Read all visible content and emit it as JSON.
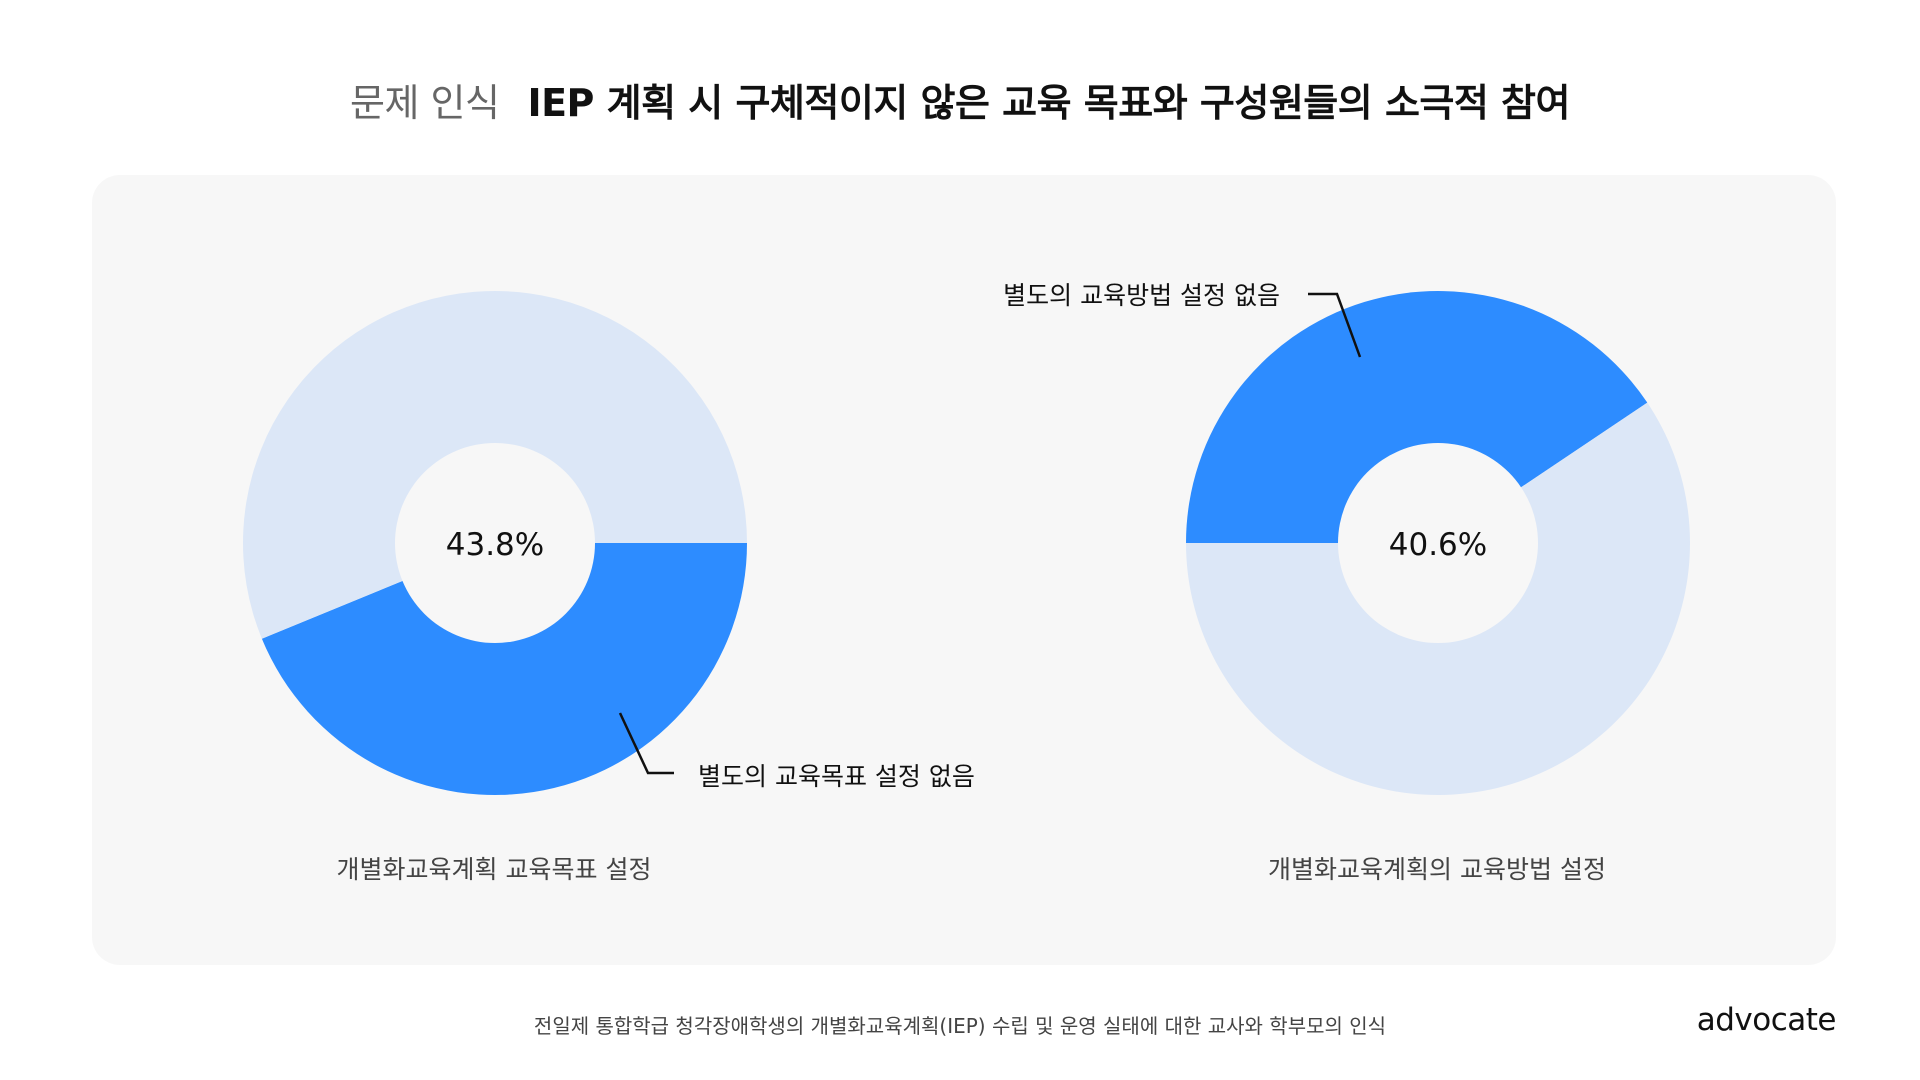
{
  "header": {
    "tag": "문제 인식",
    "title": "IEP 계획 시 구체적이지 않은 교육 목표와 구성원들의 소극적 참여"
  },
  "chart_data": [
    {
      "type": "pie",
      "style": "donut",
      "title": "개별화교육계획 교육목표 설정",
      "center_label": "43.8%",
      "slices": [
        {
          "label": "별도의 교육목표 설정 없음",
          "value": 43.8,
          "color": "#2d8cff"
        },
        {
          "label": "",
          "value": 56.2,
          "color": "#dce7f7"
        }
      ]
    },
    {
      "type": "pie",
      "style": "donut",
      "title": "개별화교육계획의 교육방법 설정",
      "center_label": "40.6%",
      "slices": [
        {
          "label": "별도의 교육방법 설정 없음",
          "value": 40.6,
          "color": "#2d8cff"
        },
        {
          "label": "",
          "value": 59.4,
          "color": "#dce7f7"
        }
      ]
    }
  ],
  "footer": {
    "source": "전일제 통합학급 청각장애학생의 개별화교육계획(IEP) 수립 및 운영 실태에 대한 교사와 학부모의 인식",
    "brand": "advocate"
  }
}
